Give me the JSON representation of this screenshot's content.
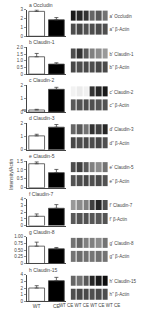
{
  "chart_data": [
    {
      "type": "bar",
      "title": "a Occludin",
      "categories": [
        null,
        null
      ],
      "values": [
        2.8,
        1.85
      ],
      "errors": [
        0.15,
        0.25
      ],
      "colors": [
        "#ffffff",
        "#000000"
      ],
      "ylim": [
        0,
        3
      ],
      "yticks": [
        0,
        1,
        2,
        3
      ],
      "tick_labels": "y"
    },
    {
      "type": "heatmap",
      "categories": [
        null,
        null,
        null,
        null,
        null,
        null
      ],
      "rows": [
        "a' Occludin",
        "a'' β-Actin"
      ],
      "cells": [
        [
          0.9,
          0.85,
          0.8,
          0.6,
          0.65,
          0.55
        ],
        [
          0.7,
          0.72,
          0.68,
          0.7,
          0.71,
          0.69
        ]
      ],
      "zlim": [
        0,
        1
      ],
      "tick_labels": "y"
    },
    {
      "type": "bar",
      "title": "b Claudin-1",
      "categories": [
        null,
        null
      ],
      "values": [
        1.3,
        0.75
      ],
      "errors": [
        0.25,
        0.1
      ],
      "colors": [
        "#ffffff",
        "#000000"
      ],
      "ylim": [
        0,
        2
      ],
      "yticks": [
        0,
        0.5,
        {
          "value": 1,
          "label": "1.0"
        },
        1.5,
        {
          "value": 2,
          "label": "2.0"
        }
      ],
      "tick_labels": "y"
    },
    {
      "type": "heatmap",
      "categories": [
        null,
        null,
        null,
        null,
        null,
        null
      ],
      "rows": [
        "b' Claudin-1",
        "b'' β-Actin"
      ],
      "cells": [
        [
          0.7,
          0.8,
          0.65,
          0.5,
          0.45,
          0.4
        ],
        [
          0.72,
          0.7,
          0.71,
          0.7,
          0.72,
          0.71
        ]
      ],
      "zlim": [
        0,
        1
      ],
      "tick_labels": "y"
    },
    {
      "type": "bar",
      "title": "c Claudin-2",
      "categories": [
        null,
        null
      ],
      "values": [
        0.15,
        1.7
      ],
      "errors": [
        0.05,
        0.15
      ],
      "colors": [
        "#ffffff",
        "#000000"
      ],
      "ylim": [
        0,
        2
      ],
      "yticks": [
        0,
        1,
        2
      ],
      "tick_labels": "y",
      "annotations": [
        {
          "text": "**",
          "x": 0,
          "y": 0.075
        }
      ]
    },
    {
      "type": "heatmap",
      "categories": [
        null,
        null,
        null,
        null,
        null,
        null
      ],
      "rows": [
        "c' Claudin-2",
        "c'' β-Actin"
      ],
      "cells": [
        [
          0.05,
          0.08,
          0.06,
          0.8,
          0.85,
          0.9
        ],
        [
          0.65,
          0.68,
          0.7,
          0.69,
          0.67,
          0.68
        ]
      ],
      "zlim": [
        0,
        1
      ],
      "tick_labels": "y"
    },
    {
      "type": "bar",
      "title": "d Claudin-3",
      "categories": [
        null,
        null
      ],
      "values": [
        1.05,
        1.7
      ],
      "errors": [
        0.12,
        0.2
      ],
      "colors": [
        "#ffffff",
        "#000000"
      ],
      "ylim": [
        0,
        2
      ],
      "yticks": [
        0,
        1,
        2
      ],
      "tick_labels": "y"
    },
    {
      "type": "heatmap",
      "categories": [
        null,
        null,
        null,
        null,
        null,
        null
      ],
      "rows": [
        "d' Claudin-3",
        "d'' β-Actin"
      ],
      "cells": [
        [
          0.6,
          0.65,
          0.55,
          0.8,
          0.75,
          0.85
        ],
        [
          0.72,
          0.7,
          0.71,
          0.7,
          0.72,
          0.69
        ]
      ],
      "zlim": [
        0,
        1
      ],
      "tick_labels": "y"
    },
    {
      "type": "bar",
      "title": "e Claudin-5",
      "ylabel": "Intensity/Actin",
      "categories": [
        null,
        null
      ],
      "values": [
        1.35,
        0.85
      ],
      "errors": [
        0.1,
        0.18
      ],
      "colors": [
        "#ffffff",
        "#000000"
      ],
      "ylim": [
        0,
        1.5
      ],
      "yticks": [
        0,
        0.5,
        {
          "value": 1,
          "label": "1.0"
        },
        1.5
      ],
      "tick_labels": "y"
    },
    {
      "type": "heatmap",
      "categories": [
        null,
        null,
        null,
        null,
        null,
        null
      ],
      "rows": [
        "e' Claudin-5",
        "e'' β-Actin"
      ],
      "cells": [
        [
          0.7,
          0.75,
          0.65,
          0.5,
          0.45,
          0.55
        ],
        [
          0.68,
          0.7,
          0.72,
          0.69,
          0.71,
          0.68
        ]
      ],
      "zlim": [
        0,
        1
      ],
      "tick_labels": "y"
    },
    {
      "type": "bar",
      "title": "f Claudin-7",
      "categories": [
        null,
        null
      ],
      "values": [
        1.4,
        2.6
      ],
      "errors": [
        0.35,
        0.55
      ],
      "colors": [
        "#ffffff",
        "#000000"
      ],
      "ylim": [
        0,
        4
      ],
      "yticks": [
        0,
        1,
        2,
        3,
        4
      ],
      "tick_labels": "y"
    },
    {
      "type": "heatmap",
      "categories": [
        null,
        null,
        null,
        null,
        null,
        null
      ],
      "rows": [
        "f' Claudin-7",
        "f' β-Actin"
      ],
      "cells": [
        [
          0.4,
          0.45,
          0.5,
          0.75,
          0.85,
          0.7
        ],
        [
          0.65,
          0.67,
          0.68,
          0.66,
          0.65,
          0.67
        ]
      ],
      "zlim": [
        0,
        1
      ],
      "tick_labels": "y"
    },
    {
      "type": "bar",
      "title": "g Claudin-8",
      "categories": [
        null,
        null
      ],
      "values": [
        0.65,
        0.55
      ],
      "errors": [
        0.15,
        0.05
      ],
      "colors": [
        "#ffffff",
        "#000000"
      ],
      "ylim": [
        0,
        1
      ],
      "yticks": [
        0,
        0.25,
        {
          "value": 0.5,
          "label": "0.50"
        },
        0.75,
        {
          "value": 1,
          "label": "1.00"
        }
      ],
      "tick_labels": "y"
    },
    {
      "type": "heatmap",
      "categories": [
        null,
        null,
        null,
        null,
        null,
        null
      ],
      "rows": [
        "g' Claudin-8",
        "g'' β-Actin"
      ],
      "cells": [
        [
          0.55,
          0.6,
          0.5,
          0.5,
          0.45,
          0.55
        ],
        [
          0.55,
          0.58,
          0.56,
          0.54,
          0.56,
          0.55
        ]
      ],
      "zlim": [
        0,
        1
      ],
      "tick_labels": "y"
    },
    {
      "type": "bar",
      "title": "h Claudin-15",
      "categories": [
        "WT",
        "CE"
      ],
      "values": [
        2.0,
        3.1
      ],
      "errors": [
        0.35,
        0.5
      ],
      "colors": [
        "#ffffff",
        "#000000"
      ],
      "ylim": [
        0,
        4
      ],
      "yticks": [
        0,
        1,
        2,
        3,
        4
      ]
    },
    {
      "type": "heatmap",
      "xlabel": "WT CE WT CE WT CE WT CE",
      "categories": [
        null,
        null,
        null,
        null,
        null,
        null
      ],
      "rows": [
        "h' Claudin-15",
        "h'' β-Actin"
      ],
      "cells": [
        [
          0.6,
          0.55,
          0.65,
          0.85,
          0.9,
          0.95
        ],
        [
          0.7,
          0.72,
          0.71,
          0.69,
          0.71,
          0.7
        ]
      ],
      "zlim": [
        0,
        1
      ],
      "tick_labels": "y"
    }
  ]
}
